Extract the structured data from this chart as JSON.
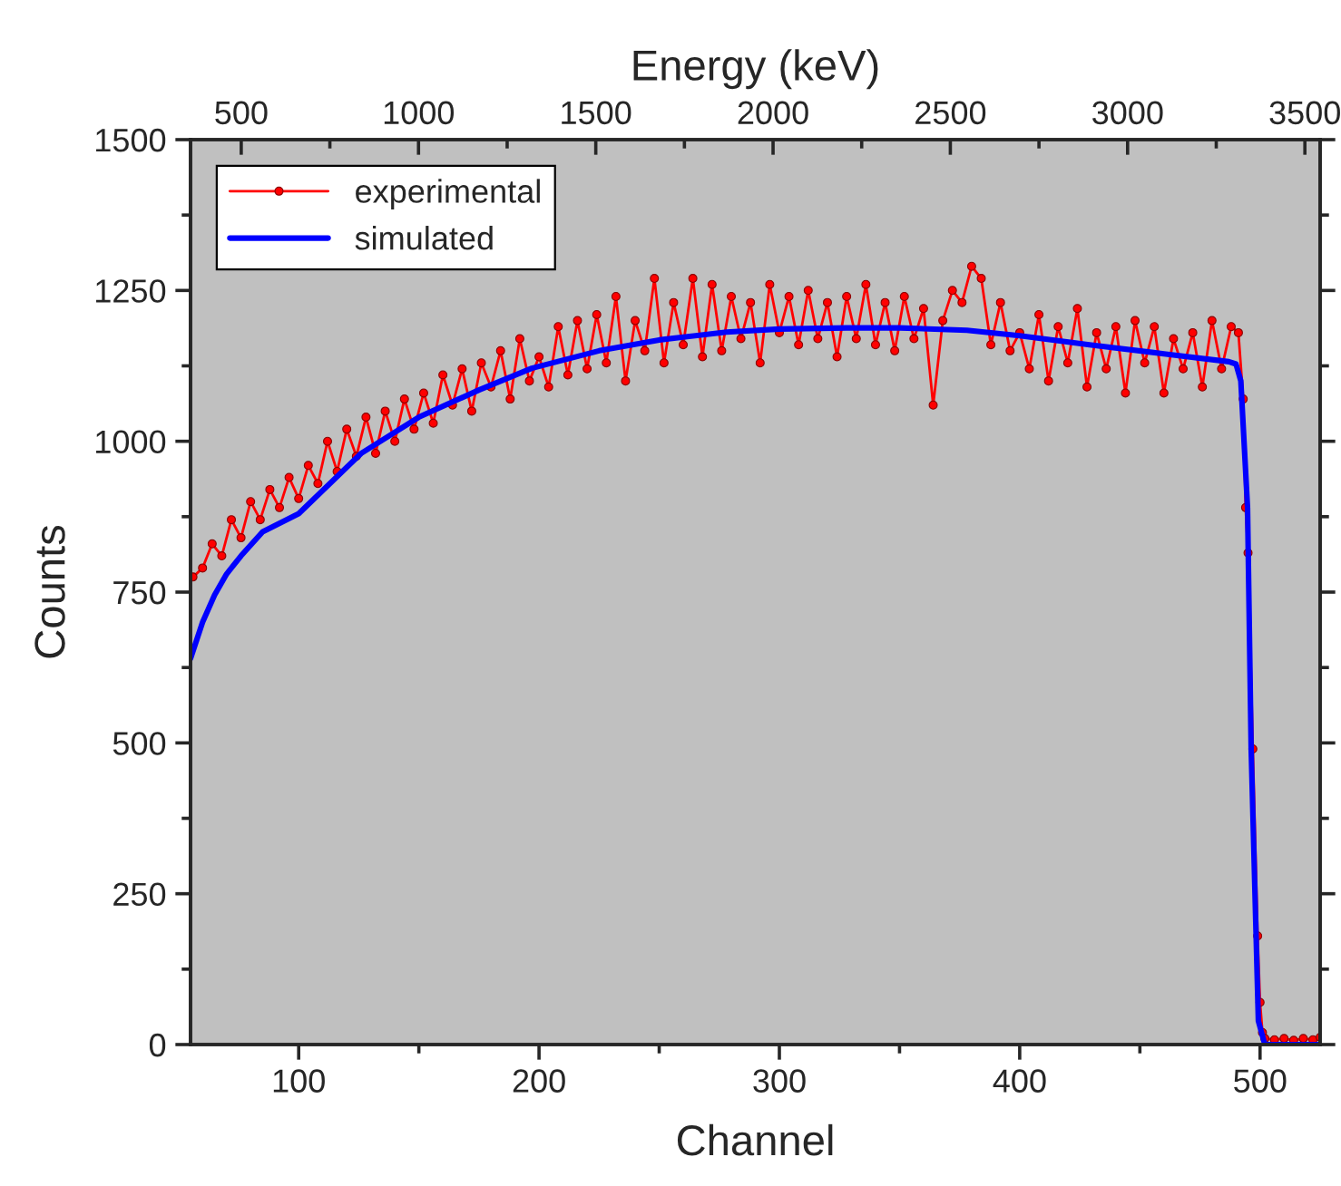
{
  "chart_data": {
    "type": "line",
    "xlabel": "Channel",
    "ylabel": "Counts",
    "x2label": "Energy (keV)",
    "xlim": [
      55,
      525
    ],
    "xticks": [
      100,
      {
        "value": 150,
        "label": null
      },
      200,
      {
        "value": 250,
        "label": null
      },
      300,
      {
        "value": 350,
        "label": null
      },
      400,
      {
        "value": 450,
        "label": null
      },
      500
    ],
    "x2lim": [
      357,
      3543
    ],
    "x2ticks": [
      500,
      {
        "value": 750,
        "label": null
      },
      1000,
      {
        "value": 1250,
        "label": null
      },
      1500,
      {
        "value": 1750,
        "label": null
      },
      2000,
      {
        "value": 2250,
        "label": null
      },
      2500,
      {
        "value": 2750,
        "label": null
      },
      3000,
      {
        "value": 3250,
        "label": null
      },
      3500
    ],
    "ylim": [
      0,
      1500
    ],
    "yticks": [
      0,
      {
        "value": 125,
        "label": null
      },
      250,
      {
        "value": 375,
        "label": null
      },
      500,
      {
        "value": 625,
        "label": null
      },
      750,
      {
        "value": 875,
        "label": null
      },
      1000,
      {
        "value": 1125,
        "label": null
      },
      1250,
      {
        "value": 1375,
        "label": null
      },
      1500
    ],
    "grid": false,
    "legend": "top left",
    "series": [
      {
        "name": "experimental",
        "color": "#ff0000",
        "marker": "circle",
        "x": [
          56,
          60,
          64,
          68,
          72,
          76,
          80,
          84,
          88,
          92,
          96,
          100,
          104,
          108,
          112,
          116,
          120,
          124,
          128,
          132,
          136,
          140,
          144,
          148,
          152,
          156,
          160,
          164,
          168,
          172,
          176,
          180,
          184,
          188,
          192,
          196,
          200,
          204,
          208,
          212,
          216,
          220,
          224,
          228,
          232,
          236,
          240,
          244,
          248,
          252,
          256,
          260,
          264,
          268,
          272,
          276,
          280,
          284,
          288,
          292,
          296,
          300,
          304,
          308,
          312,
          316,
          320,
          324,
          328,
          332,
          336,
          340,
          344,
          348,
          352,
          356,
          360,
          364,
          368,
          372,
          376,
          380,
          384,
          388,
          392,
          396,
          400,
          404,
          408,
          412,
          416,
          420,
          424,
          428,
          432,
          436,
          440,
          444,
          448,
          452,
          456,
          460,
          464,
          468,
          472,
          476,
          480,
          484,
          488,
          491,
          493,
          494,
          495,
          497,
          499,
          500,
          501,
          502,
          506,
          510,
          514,
          518,
          522,
          525
        ],
        "values": [
          775,
          790,
          830,
          810,
          870,
          840,
          900,
          870,
          920,
          890,
          940,
          905,
          960,
          930,
          1000,
          950,
          1020,
          975,
          1040,
          980,
          1050,
          1000,
          1070,
          1020,
          1080,
          1030,
          1110,
          1060,
          1120,
          1050,
          1130,
          1090,
          1150,
          1070,
          1170,
          1100,
          1140,
          1090,
          1190,
          1110,
          1200,
          1120,
          1210,
          1130,
          1240,
          1100,
          1200,
          1150,
          1270,
          1130,
          1230,
          1160,
          1270,
          1140,
          1260,
          1150,
          1240,
          1170,
          1230,
          1130,
          1260,
          1180,
          1240,
          1160,
          1250,
          1170,
          1230,
          1140,
          1240,
          1170,
          1260,
          1160,
          1230,
          1150,
          1240,
          1170,
          1220,
          1060,
          1200,
          1250,
          1230,
          1290,
          1270,
          1160,
          1230,
          1150,
          1180,
          1120,
          1210,
          1100,
          1190,
          1130,
          1220,
          1090,
          1180,
          1120,
          1190,
          1080,
          1200,
          1130,
          1190,
          1080,
          1170,
          1120,
          1180,
          1090,
          1200,
          1120,
          1190,
          1180,
          1070,
          890,
          815,
          490,
          180,
          70,
          20,
          10,
          8,
          10,
          7,
          10,
          8,
          12
        ]
      },
      {
        "name": "simulated",
        "color": "#0000ff",
        "marker": "none",
        "x": [
          55,
          60,
          65,
          70,
          76,
          85,
          100,
          126,
          150,
          175,
          197,
          225,
          250,
          278,
          300,
          328,
          350,
          378,
          400,
          429,
          460,
          487,
          490,
          492,
          494.8,
          496.3,
          499.3,
          502,
          525
        ],
        "values": [
          640,
          700,
          745,
          780,
          810,
          850,
          880,
          980,
          1040,
          1085,
          1121,
          1150,
          1168,
          1181,
          1186,
          1188,
          1188,
          1184,
          1175,
          1160,
          1145,
          1132,
          1128,
          1100,
          890,
          490,
          39,
          0,
          0
        ]
      }
    ]
  }
}
